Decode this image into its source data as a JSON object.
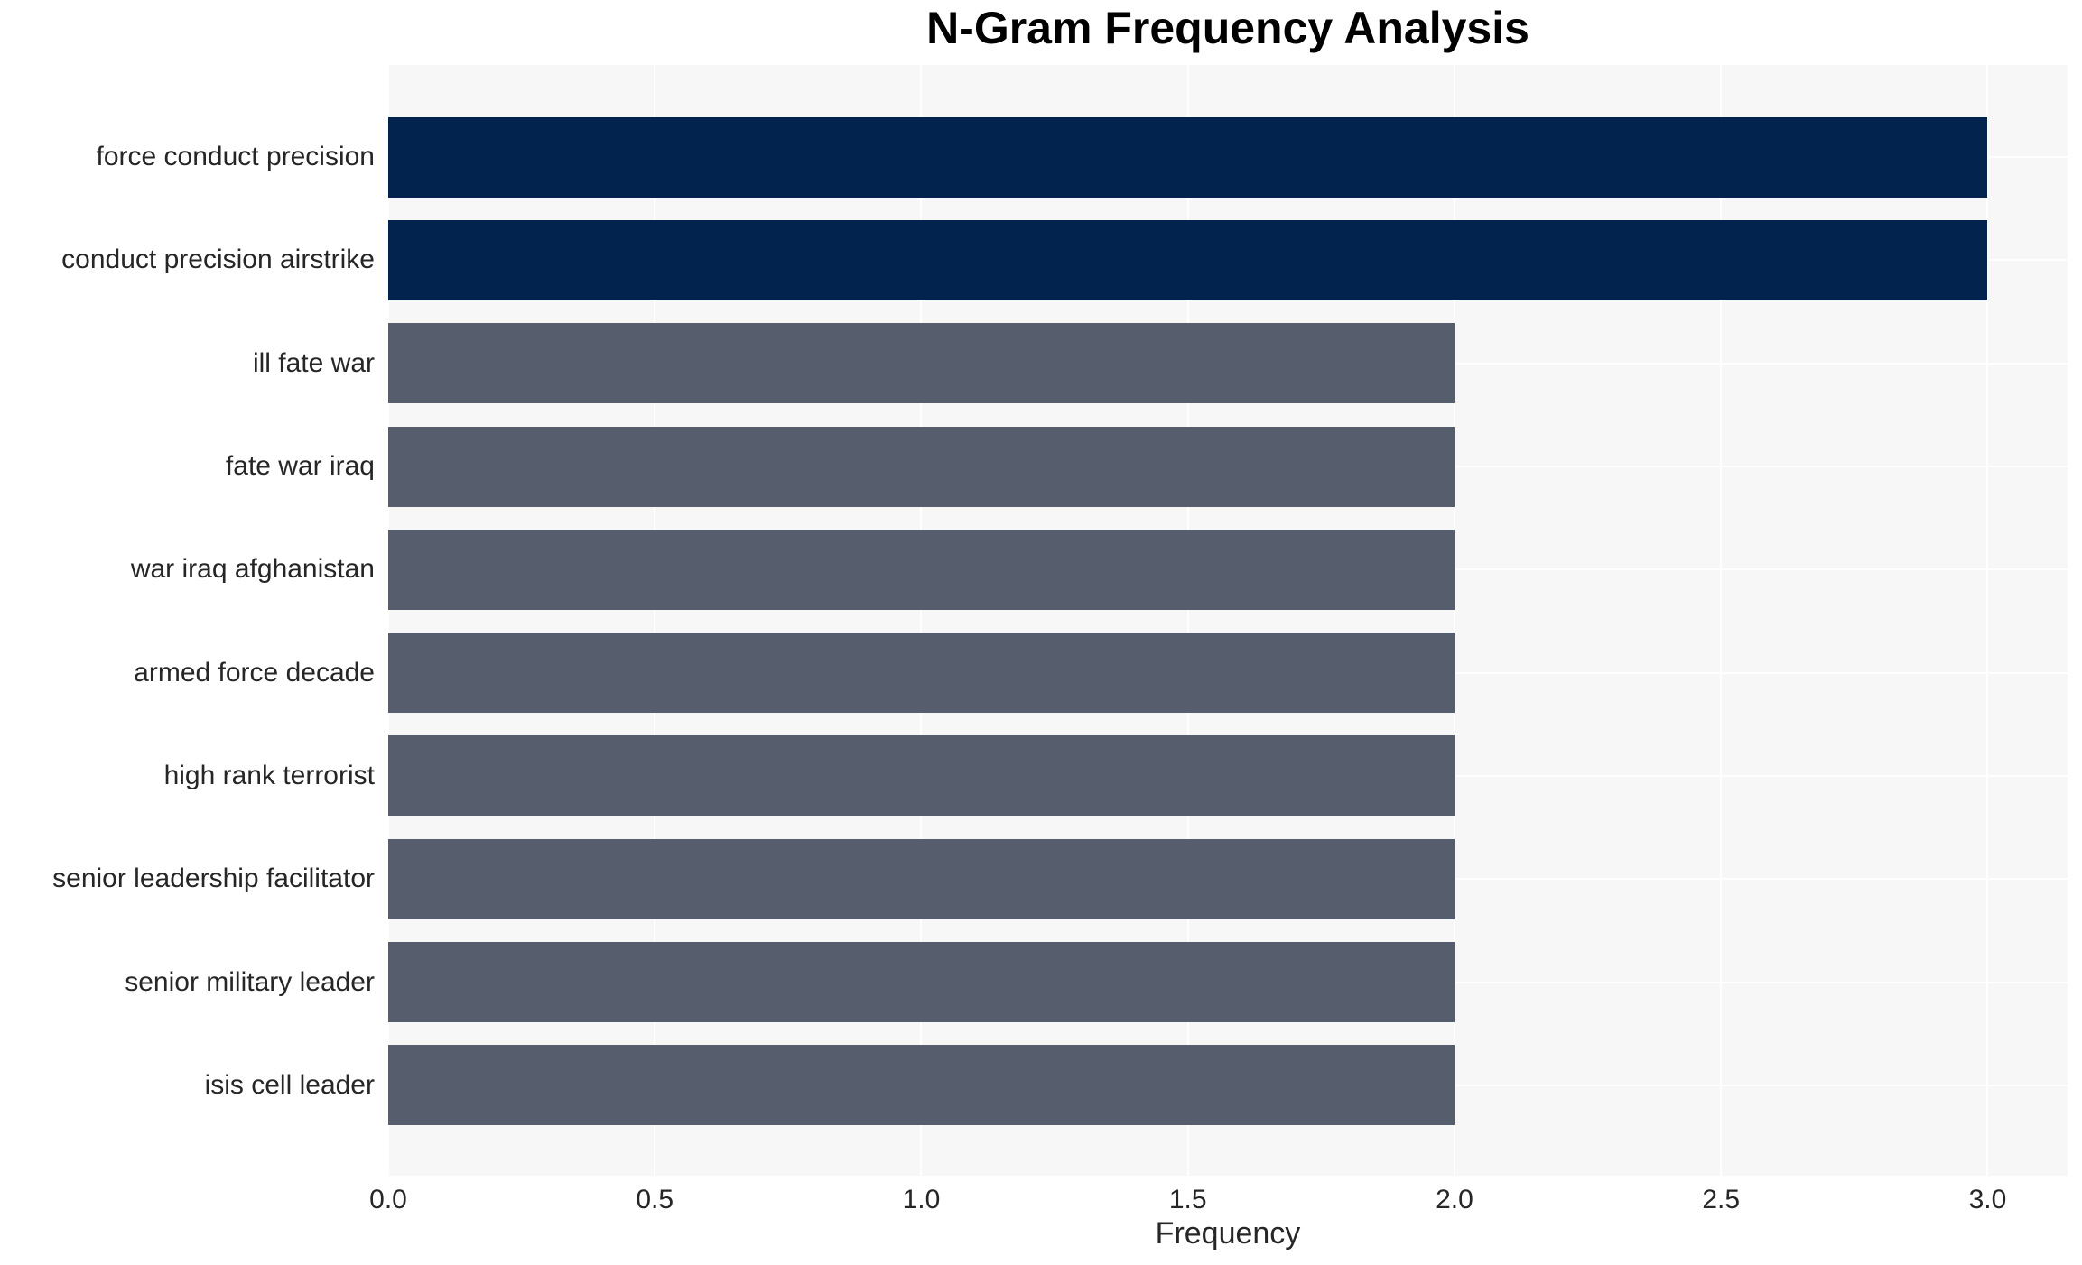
{
  "title": "N-Gram Frequency Analysis",
  "colors": {
    "background": "#ffffff",
    "plot_background": "#f7f7f8",
    "gridline": "#ffffff",
    "bar_top": "#02234d",
    "bar_default": "#565d6c",
    "text": "#262626",
    "title_text": "#000000"
  },
  "chart_data": {
    "type": "bar",
    "orientation": "horizontal",
    "title": "N-Gram Frequency Analysis",
    "xlabel": "Frequency",
    "ylabel": "",
    "categories": [
      "force conduct precision",
      "conduct precision airstrike",
      "ill fate war",
      "fate war iraq",
      "war iraq afghanistan",
      "armed force decade",
      "high rank terrorist",
      "senior leadership facilitator",
      "senior military leader",
      "isis cell leader"
    ],
    "values": [
      3,
      3,
      2,
      2,
      2,
      2,
      2,
      2,
      2,
      2
    ],
    "bar_colors": [
      "#02234d",
      "#02234d",
      "#565d6c",
      "#565d6c",
      "#565d6c",
      "#565d6c",
      "#565d6c",
      "#565d6c",
      "#565d6c",
      "#565d6c"
    ],
    "xlim": [
      0,
      3.15
    ],
    "xticks": [
      "0.0",
      "0.5",
      "1.0",
      "1.5",
      "2.0",
      "2.5",
      "3.0"
    ],
    "xtick_values": [
      0,
      0.5,
      1,
      1.5,
      2,
      2.5,
      3
    ],
    "grid": true,
    "legend": false
  }
}
